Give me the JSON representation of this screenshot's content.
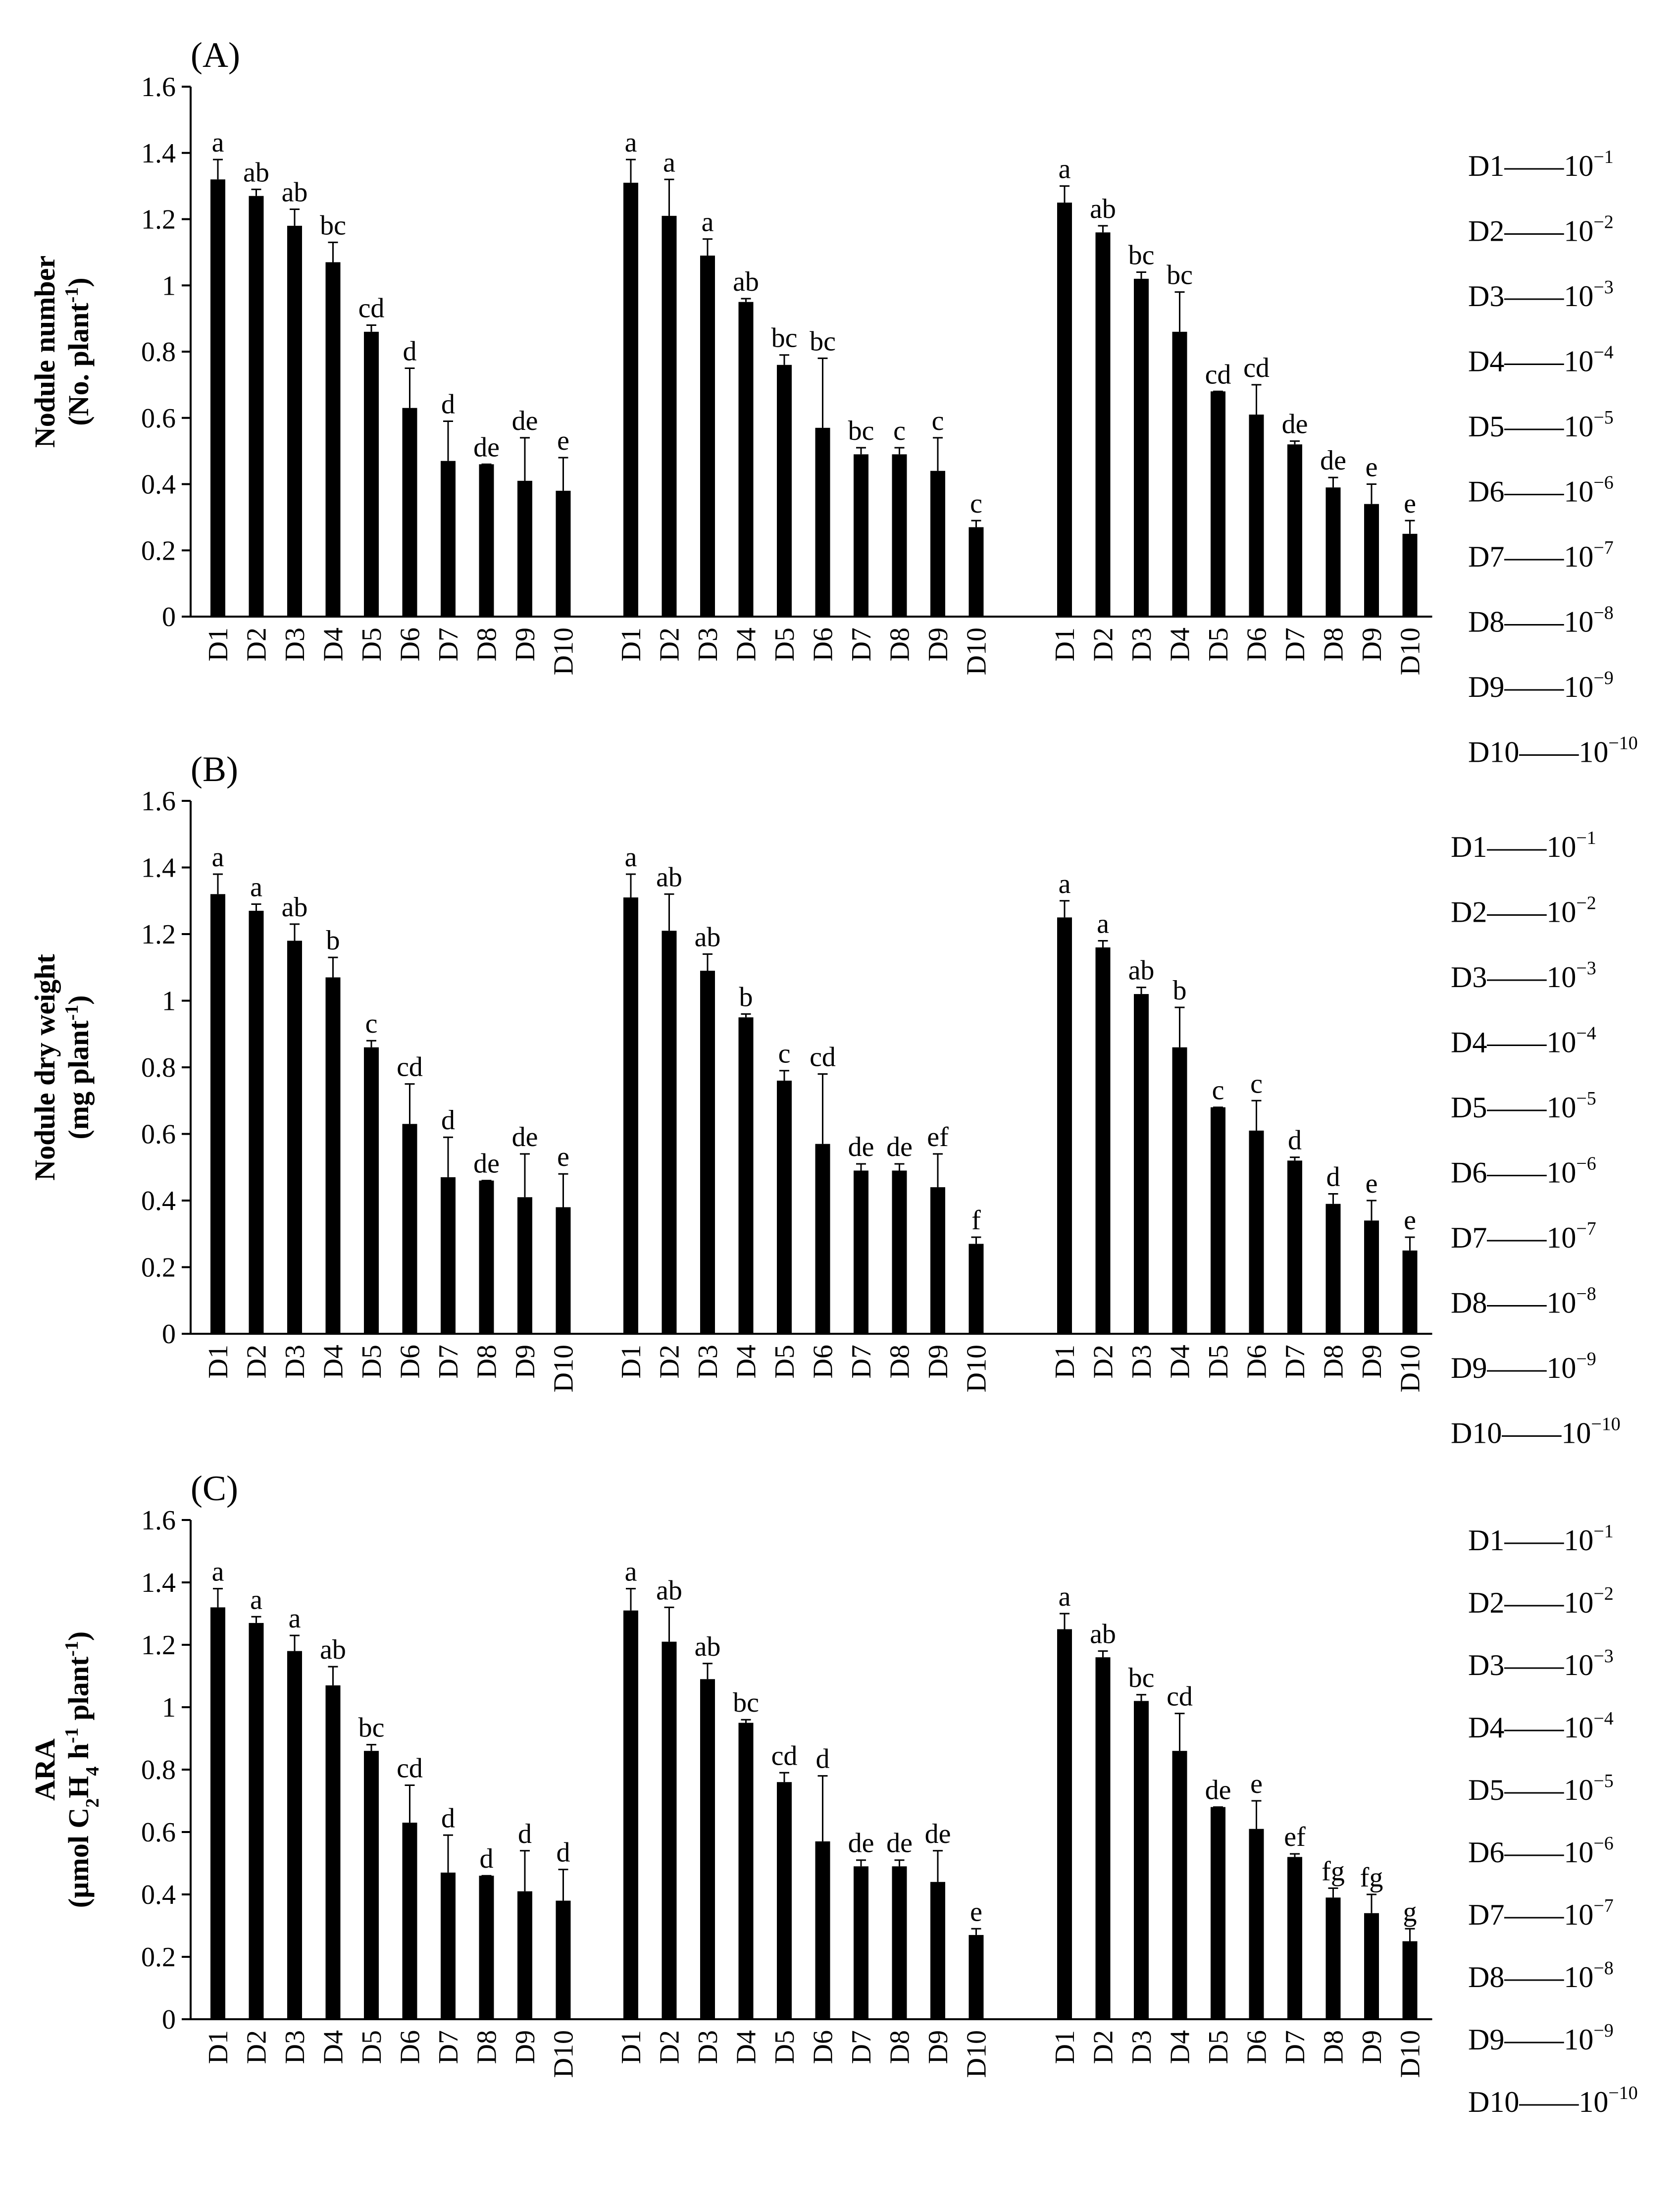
{
  "chart_data": [
    {
      "type": "bar",
      "panel_label": "(A)",
      "ylabel_line1": "Nodule number",
      "ylabel_line2": "(No. plant",
      "ylabel_sup": "-1",
      "ylabel_close": ")",
      "ylim": [
        0,
        1.6
      ],
      "yticks": [
        "0",
        "0.2",
        "0.4",
        "0.6",
        "0.8",
        "1",
        "1.2",
        "1.4",
        "1.6"
      ],
      "categories": [
        "D1",
        "D2",
        "D3",
        "D4",
        "D5",
        "D6",
        "D7",
        "D8",
        "D9",
        "D10"
      ],
      "groups": [
        {
          "values": [
            1.32,
            1.27,
            1.18,
            1.07,
            0.86,
            0.63,
            0.47,
            0.46,
            0.41,
            0.38
          ],
          "errors": [
            0.06,
            0.02,
            0.05,
            0.06,
            0.02,
            0.12,
            0.12,
            0.0,
            0.13,
            0.1
          ],
          "letters": [
            "a",
            "ab",
            "ab",
            "bc",
            "cd",
            "d",
            "d",
            "de",
            "de",
            "e"
          ]
        },
        {
          "values": [
            1.31,
            1.21,
            1.09,
            0.95,
            0.76,
            0.57,
            0.49,
            0.49,
            0.44,
            0.27
          ],
          "errors": [
            0.07,
            0.11,
            0.05,
            0.01,
            0.03,
            0.21,
            0.02,
            0.02,
            0.1,
            0.02
          ],
          "letters": [
            "a",
            "a",
            "a",
            "ab",
            "bc",
            "bc",
            "bc",
            "c",
            "c",
            "c"
          ]
        },
        {
          "values": [
            1.25,
            1.16,
            1.02,
            0.86,
            0.68,
            0.61,
            0.52,
            0.39,
            0.34,
            0.25
          ],
          "errors": [
            0.05,
            0.02,
            0.02,
            0.12,
            0.0,
            0.09,
            0.01,
            0.03,
            0.06,
            0.04
          ],
          "letters": [
            "a",
            "ab",
            "bc",
            "bc",
            "cd",
            "cd",
            "de",
            "de",
            "e",
            "e"
          ]
        }
      ]
    },
    {
      "type": "bar",
      "panel_label": "(B)",
      "ylabel_line1": "Nodule dry weight",
      "ylabel_line2": "(mg plant",
      "ylabel_sup": "-1",
      "ylabel_close": ")",
      "ylim": [
        0,
        1.6
      ],
      "yticks": [
        "0",
        "0.2",
        "0.4",
        "0.6",
        "0.8",
        "1",
        "1.2",
        "1.4",
        "1.6"
      ],
      "categories": [
        "D1",
        "D2",
        "D3",
        "D4",
        "D5",
        "D6",
        "D7",
        "D8",
        "D9",
        "D10"
      ],
      "groups": [
        {
          "values": [
            1.32,
            1.27,
            1.18,
            1.07,
            0.86,
            0.63,
            0.47,
            0.46,
            0.41,
            0.38
          ],
          "errors": [
            0.06,
            0.02,
            0.05,
            0.06,
            0.02,
            0.12,
            0.12,
            0.0,
            0.13,
            0.1
          ],
          "letters": [
            "a",
            "a",
            "ab",
            "b",
            "c",
            "cd",
            "d",
            "de",
            "de",
            "e"
          ]
        },
        {
          "values": [
            1.31,
            1.21,
            1.09,
            0.95,
            0.76,
            0.57,
            0.49,
            0.49,
            0.44,
            0.27
          ],
          "errors": [
            0.07,
            0.11,
            0.05,
            0.01,
            0.03,
            0.21,
            0.02,
            0.02,
            0.1,
            0.02
          ],
          "letters": [
            "a",
            "ab",
            "ab",
            "b",
            "c",
            "cd",
            "de",
            "de",
            "ef",
            "f"
          ]
        },
        {
          "values": [
            1.25,
            1.16,
            1.02,
            0.86,
            0.68,
            0.61,
            0.52,
            0.39,
            0.34,
            0.25
          ],
          "errors": [
            0.05,
            0.02,
            0.02,
            0.12,
            0.0,
            0.09,
            0.01,
            0.03,
            0.06,
            0.04
          ],
          "letters": [
            "a",
            "a",
            "ab",
            "b",
            "c",
            "c",
            "d",
            "d",
            "e",
            "e"
          ]
        }
      ]
    },
    {
      "type": "bar",
      "panel_label": "(C)",
      "ylabel_line1": "ARA",
      "ylabel_line2": "(µmol C",
      "ylabel_sub1": "2",
      "ylabel_mid1": "H",
      "ylabel_sub2": "4",
      "ylabel_mid2": " h",
      "ylabel_sup": "-1",
      "ylabel_mid3": " plant",
      "ylabel_sup2": "-1",
      "ylabel_close": ")",
      "ylim": [
        0,
        1.6
      ],
      "yticks": [
        "0",
        "0.2",
        "0.4",
        "0.6",
        "0.8",
        "1",
        "1.2",
        "1.4",
        "1.6"
      ],
      "categories": [
        "D1",
        "D2",
        "D3",
        "D4",
        "D5",
        "D6",
        "D7",
        "D8",
        "D9",
        "D10"
      ],
      "groups": [
        {
          "values": [
            1.32,
            1.27,
            1.18,
            1.07,
            0.86,
            0.63,
            0.47,
            0.46,
            0.41,
            0.38
          ],
          "errors": [
            0.06,
            0.02,
            0.05,
            0.06,
            0.02,
            0.12,
            0.12,
            0.0,
            0.13,
            0.1
          ],
          "letters": [
            "a",
            "a",
            "a",
            "ab",
            "bc",
            "cd",
            "d",
            "d",
            "d",
            "d"
          ]
        },
        {
          "values": [
            1.31,
            1.21,
            1.09,
            0.95,
            0.76,
            0.57,
            0.49,
            0.49,
            0.44,
            0.27
          ],
          "errors": [
            0.07,
            0.11,
            0.05,
            0.01,
            0.03,
            0.21,
            0.02,
            0.02,
            0.1,
            0.02
          ],
          "letters": [
            "a",
            "ab",
            "ab",
            "bc",
            "cd",
            "d",
            "de",
            "de",
            "de",
            "e"
          ]
        },
        {
          "values": [
            1.25,
            1.16,
            1.02,
            0.86,
            0.68,
            0.61,
            0.52,
            0.39,
            0.34,
            0.25
          ],
          "errors": [
            0.05,
            0.02,
            0.02,
            0.12,
            0.0,
            0.09,
            0.01,
            0.03,
            0.06,
            0.04
          ],
          "letters": [
            "a",
            "ab",
            "bc",
            "cd",
            "de",
            "e",
            "ef",
            "fg",
            "fg",
            "g"
          ]
        }
      ]
    }
  ],
  "legend": {
    "dash": "—",
    "base": "10",
    "items": [
      {
        "code": "D1",
        "exp": "−1"
      },
      {
        "code": "D2",
        "exp": "−2"
      },
      {
        "code": "D3",
        "exp": "−3"
      },
      {
        "code": "D4",
        "exp": "−4"
      },
      {
        "code": "D5",
        "exp": "−5"
      },
      {
        "code": "D6",
        "exp": "−6"
      },
      {
        "code": "D7",
        "exp": "−7"
      },
      {
        "code": "D8",
        "exp": "−8"
      },
      {
        "code": "D9",
        "exp": "−9"
      },
      {
        "code": "D10",
        "exp": "−10"
      }
    ]
  },
  "colors": {
    "bar": "#000000",
    "axis": "#000000",
    "background": "#ffffff"
  }
}
